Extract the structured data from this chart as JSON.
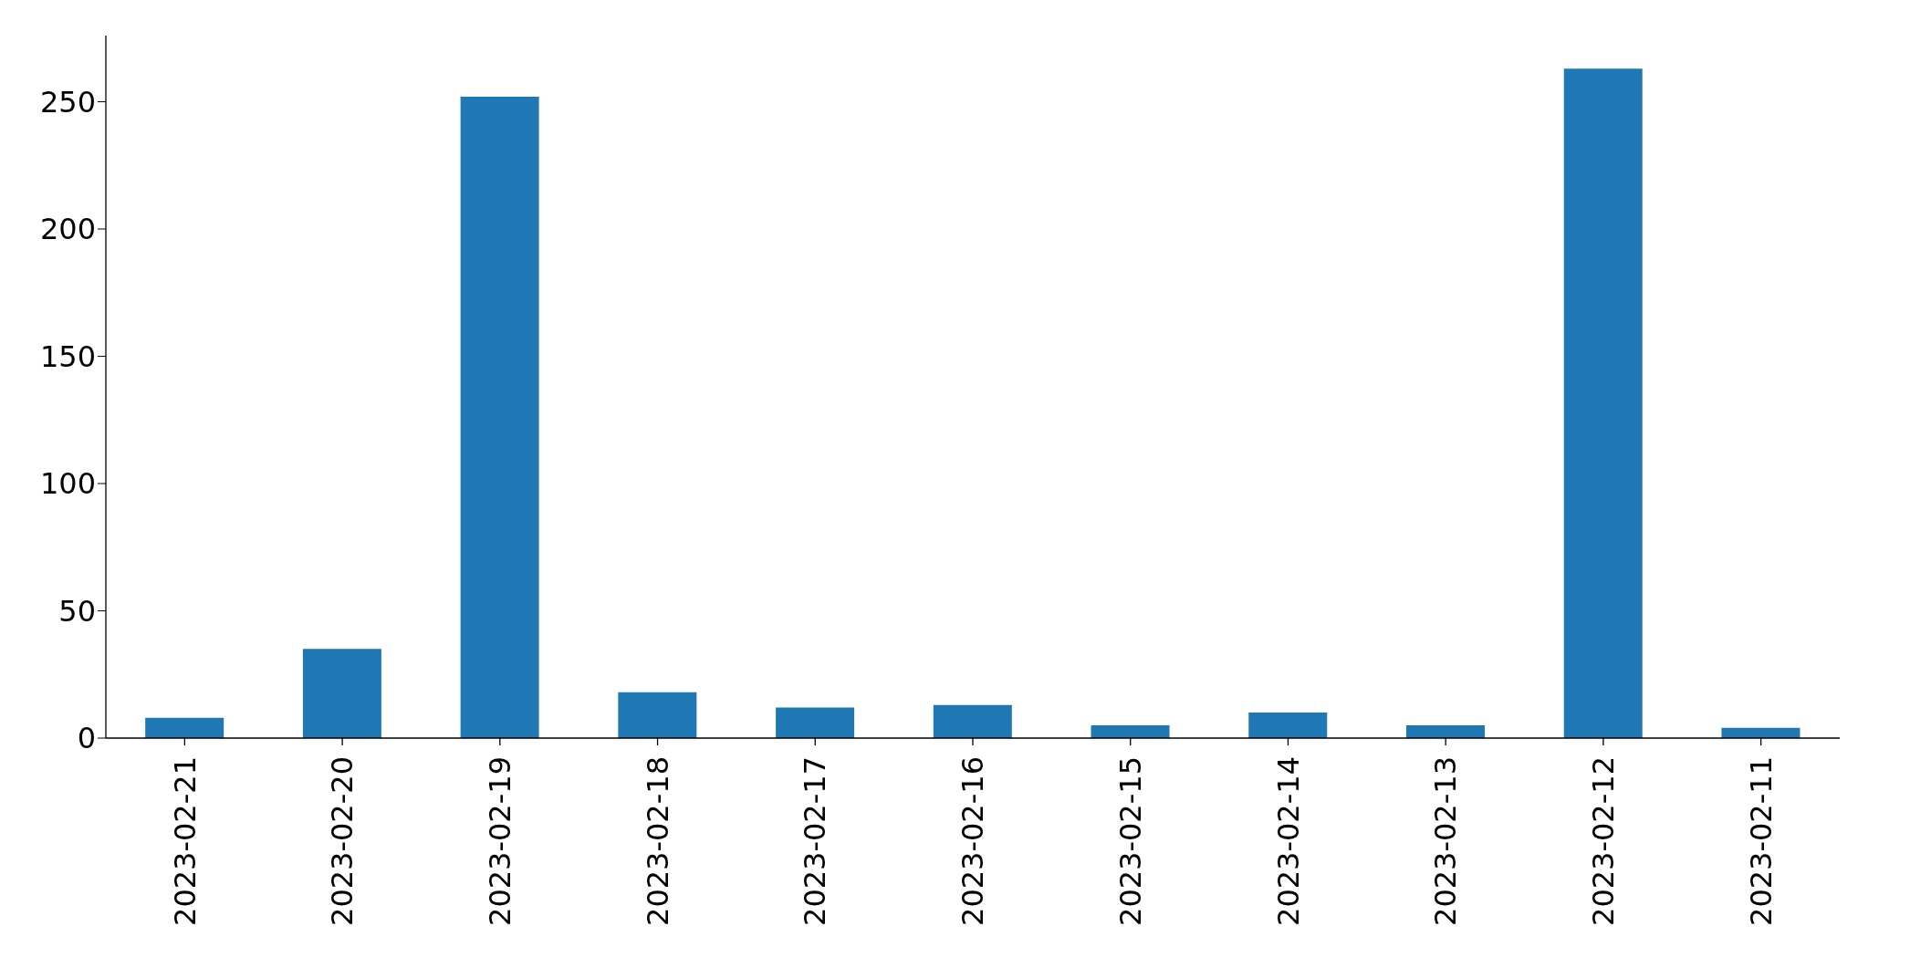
{
  "chart_data": {
    "type": "bar",
    "categories": [
      "2023-02-21",
      "2023-02-20",
      "2023-02-19",
      "2023-02-18",
      "2023-02-17",
      "2023-02-16",
      "2023-02-15",
      "2023-02-14",
      "2023-02-13",
      "2023-02-12",
      "2023-02-11"
    ],
    "values": [
      8,
      35,
      252,
      18,
      12,
      13,
      5,
      10,
      5,
      263,
      4
    ],
    "color": "#1f77b4",
    "ylim": [
      0,
      276
    ],
    "yticks": [
      0,
      50,
      100,
      150,
      200,
      250
    ],
    "grid": false,
    "legend": false
  }
}
